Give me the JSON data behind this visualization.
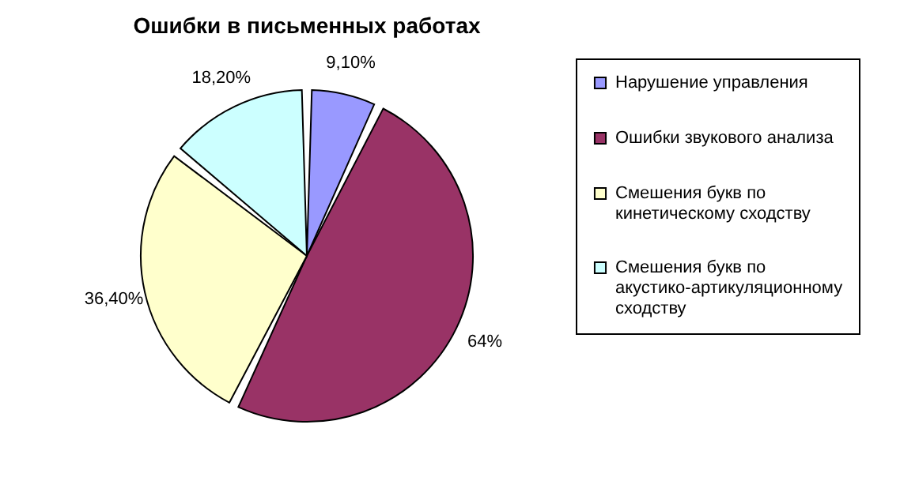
{
  "chart_data": {
    "type": "pie",
    "title": "Ошибки в письменных работах",
    "categories": [
      "Нарушение управления",
      "Ошибки звукового анализа",
      "Смешения букв по кинетическому сходству",
      "Смешения букв по акустико-артикуляционному сходству"
    ],
    "values": [
      9.1,
      64,
      36.4,
      18.2
    ],
    "value_labels": [
      "9,10%",
      "64%",
      "36,40%",
      "18,20%"
    ],
    "colors": [
      "#9999ff",
      "#993366",
      "#ffffcc",
      "#ccffff"
    ],
    "legend": "right"
  }
}
